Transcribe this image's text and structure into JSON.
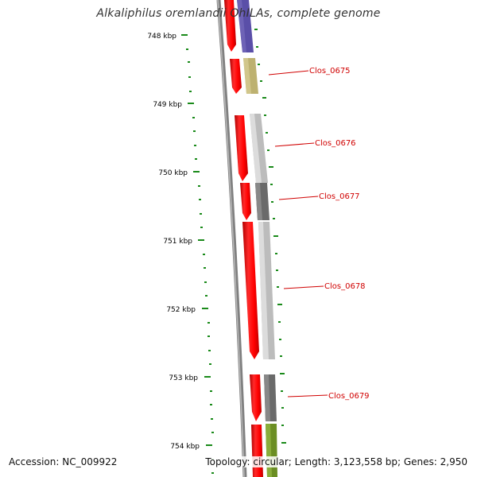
{
  "title": "Alkaliphilus oremlandii OhILAs, complete genome",
  "footer": {
    "accession": "Accession: NC_009922",
    "summary": "Topology: circular; Length: 3,123,558 bp; Genes: 2,950"
  },
  "axis": {
    "unit": "kbp",
    "major_ticks": [
      "748 kbp",
      "749 kbp",
      "750 kbp",
      "751 kbp",
      "752 kbp",
      "753 kbp",
      "754 kbp"
    ],
    "tick_color": "#1a8a1a"
  },
  "genes": [
    {
      "name": "",
      "strand_color": "#ff0000",
      "track_color": "#5a4fa8"
    },
    {
      "name": "Clos_0675",
      "strand_color": "#ff0000",
      "track_color": "#bdb170"
    },
    {
      "name": "Clos_0676",
      "strand_color": "#ff0000",
      "track_color": "#c0c0c0"
    },
    {
      "name": "Clos_0677",
      "strand_color": "#ff0000",
      "track_color": "#6a6a6a"
    },
    {
      "name": "Clos_0678",
      "strand_color": "#ff0000",
      "track_color": "#c0c0c0"
    },
    {
      "name": "Clos_0679",
      "strand_color": "#ff0000",
      "track_color": "#6a6a6a"
    },
    {
      "name": "",
      "strand_color": "#ff0000",
      "track_color": "#6b8e23"
    }
  ],
  "colors": {
    "backbone": "#7a7a7a",
    "forward": "#ff0000",
    "label": "#d00000"
  }
}
